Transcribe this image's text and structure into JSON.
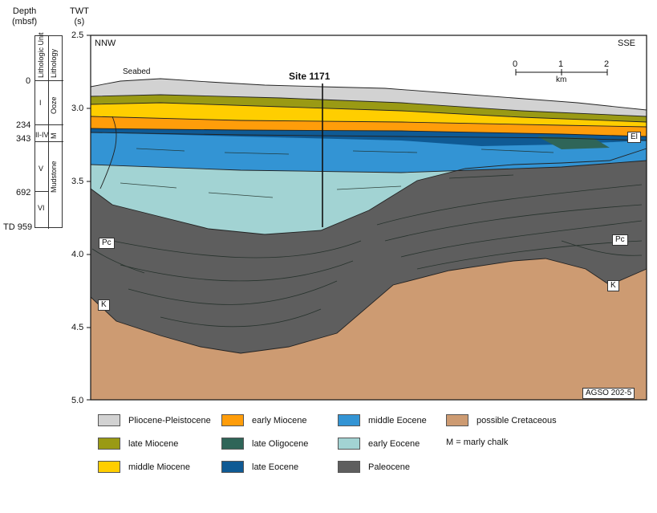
{
  "depth_header": {
    "line1": "Depth",
    "line2": "(mbsf)"
  },
  "twt_header": {
    "line1": "TWT",
    "line2": "(s)"
  },
  "column": {
    "col1_header": "Lithologic Unit",
    "col2_header": "Lithology",
    "units": [
      "I",
      "II-IV",
      "V",
      "VI"
    ],
    "lithologies": [
      "Ooze",
      "M",
      "Mudstone"
    ]
  },
  "depth_labels": [
    "0",
    "234",
    "343",
    "692",
    "TD 959"
  ],
  "twt_ticks": [
    "2.5",
    "3.0",
    "3.5",
    "4.0",
    "4.5",
    "5.0"
  ],
  "section": {
    "left_dir": "NNW",
    "right_dir": "SSE",
    "seabed": "Seabed",
    "site": "Site 1171",
    "source": "AGSO 202-5",
    "labels": {
      "el": "El",
      "pc_left": "Pc",
      "pc_right": "Pc",
      "k_left": "K",
      "k_right": "K"
    }
  },
  "scale": {
    "ticks": [
      "0",
      "1",
      "2"
    ],
    "unit": "km"
  },
  "legend": [
    {
      "label": "Pliocene-Pleistocene",
      "color": "#d2d2d2"
    },
    {
      "label": "late Miocene",
      "color": "#9a9a14"
    },
    {
      "label": "middle Miocene",
      "color": "#ffce00"
    },
    {
      "label": "early Miocene",
      "color": "#ff9d0a"
    },
    {
      "label": "late Oligocene",
      "color": "#2f6558"
    },
    {
      "label": "late Eocene",
      "color": "#0f5a94"
    },
    {
      "label": "middle Eocene",
      "color": "#3394d4"
    },
    {
      "label": "early Eocene",
      "color": "#a2d3d3"
    },
    {
      "label": "Paleocene",
      "color": "#5e5e5e"
    },
    {
      "label": "possible Cretaceous",
      "color": "#cd9b72"
    },
    {
      "label": "M = marly chalk"
    }
  ]
}
